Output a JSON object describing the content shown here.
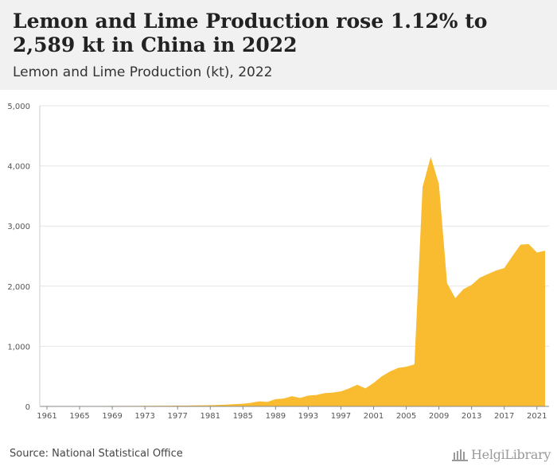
{
  "header": {
    "title": "Lemon and Lime Production rose 1.12% to 2,589 kt in China in 2022",
    "subtitle": "Lemon and Lime Production (kt), 2022"
  },
  "footer": {
    "source": "Source: National Statistical Office",
    "logo_text": "HelgiLibrary"
  },
  "colors": {
    "area": "#f9bb2f",
    "grid": "#e6e6e6",
    "axis": "#888888",
    "tick_text": "#555555"
  },
  "chart_data": {
    "type": "area",
    "title": "Lemon and Lime Production rose 1.12% to 2,589 kt in China in 2022",
    "subtitle": "Lemon and Lime Production (kt), 2022",
    "xlabel": "",
    "ylabel": "",
    "ylim": [
      0,
      5000
    ],
    "yticks": [
      0,
      1000,
      2000,
      3000,
      4000,
      5000
    ],
    "ytick_labels": [
      "0",
      "1,000",
      "2,000",
      "3,000",
      "4,000",
      "5,000"
    ],
    "xticks": [
      1961,
      1965,
      1969,
      1973,
      1977,
      1981,
      1985,
      1989,
      1993,
      1997,
      2001,
      2005,
      2009,
      2013,
      2017,
      2021
    ],
    "xtick_labels": [
      "1961",
      "1965",
      "1969",
      "1973",
      "1977",
      "1981",
      "1985",
      "1989",
      "1993",
      "1997",
      "2001",
      "2005",
      "2009",
      "2013",
      "2017",
      "2021"
    ],
    "grid": true,
    "series": [
      {
        "x": [
          1961,
          1962,
          1963,
          1964,
          1965,
          1966,
          1967,
          1968,
          1969,
          1970,
          1971,
          1972,
          1973,
          1974,
          1975,
          1976,
          1977,
          1978,
          1979,
          1980,
          1981,
          1982,
          1983,
          1984,
          1985,
          1986,
          1987,
          1988,
          1989,
          1990,
          1991,
          1992,
          1993,
          1994,
          1995,
          1996,
          1997,
          1998,
          1999,
          2000,
          2001,
          2002,
          2003,
          2004,
          2005,
          2006,
          2007,
          2008,
          2009,
          2010,
          2011,
          2012,
          2013,
          2014,
          2015,
          2016,
          2017,
          2018,
          2019,
          2020,
          2021,
          2022
        ],
        "values": [
          5,
          5,
          5,
          6,
          6,
          6,
          7,
          7,
          8,
          8,
          9,
          9,
          10,
          10,
          11,
          12,
          13,
          14,
          16,
          18,
          20,
          25,
          30,
          38,
          45,
          60,
          85,
          75,
          120,
          130,
          170,
          140,
          180,
          190,
          220,
          230,
          250,
          300,
          360,
          300,
          390,
          500,
          580,
          640,
          660,
          700,
          3650,
          4150,
          3700,
          2050,
          1800,
          1950,
          2020,
          2140,
          2200,
          2260,
          2300,
          2500,
          2690,
          2700,
          2560,
          2589
        ]
      }
    ]
  }
}
